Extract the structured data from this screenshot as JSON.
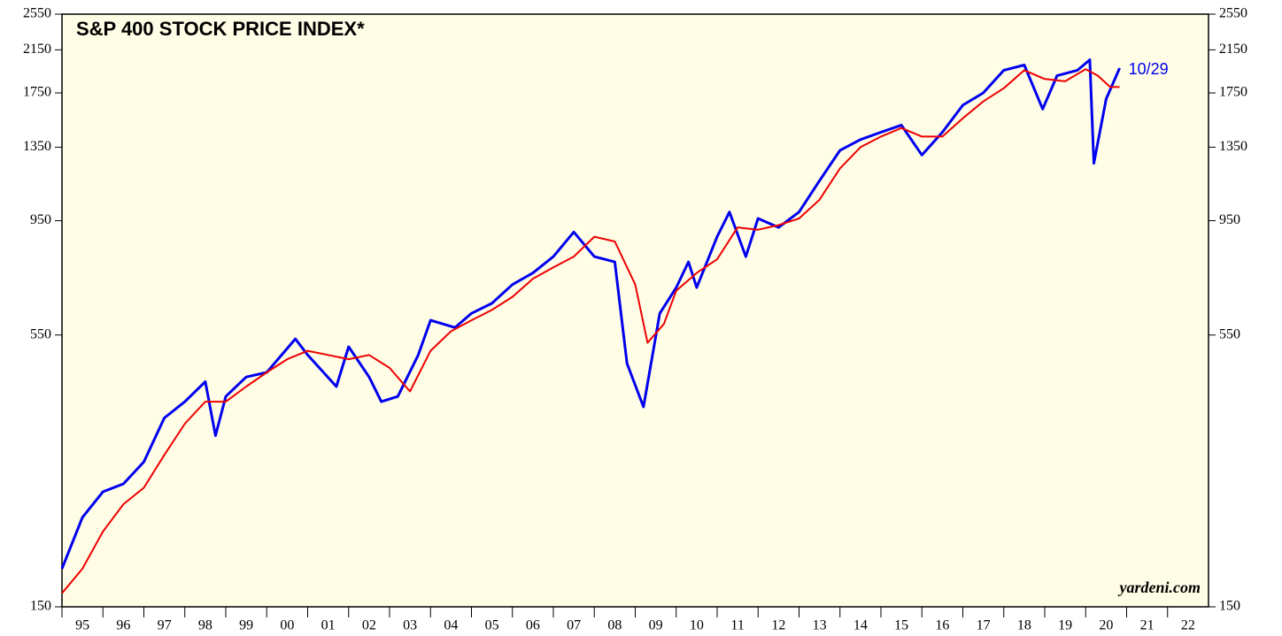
{
  "chart_data": {
    "type": "line",
    "title": "S&P 400 STOCK PRICE INDEX*",
    "source": "yardeni.com",
    "annotation": "10/29",
    "log_scale": true,
    "xlim": [
      1995,
      2023
    ],
    "xticks": [
      {
        "value": 1995,
        "label": "95"
      },
      {
        "value": 1996,
        "label": "96"
      },
      {
        "value": 1997,
        "label": "97"
      },
      {
        "value": 1998,
        "label": "98"
      },
      {
        "value": 1999,
        "label": "99"
      },
      {
        "value": 2000,
        "label": "00"
      },
      {
        "value": 2001,
        "label": "01"
      },
      {
        "value": 2002,
        "label": "02"
      },
      {
        "value": 2003,
        "label": "03"
      },
      {
        "value": 2004,
        "label": "04"
      },
      {
        "value": 2005,
        "label": "05"
      },
      {
        "value": 2006,
        "label": "06"
      },
      {
        "value": 2007,
        "label": "07"
      },
      {
        "value": 2008,
        "label": "08"
      },
      {
        "value": 2009,
        "label": "09"
      },
      {
        "value": 2010,
        "label": "10"
      },
      {
        "value": 2011,
        "label": "11"
      },
      {
        "value": 2012,
        "label": "12"
      },
      {
        "value": 2013,
        "label": "13"
      },
      {
        "value": 2014,
        "label": "14"
      },
      {
        "value": 2015,
        "label": "15"
      },
      {
        "value": 2016,
        "label": "16"
      },
      {
        "value": 2017,
        "label": "17"
      },
      {
        "value": 2018,
        "label": "18"
      },
      {
        "value": 2019,
        "label": "19"
      },
      {
        "value": 2020,
        "label": "20"
      },
      {
        "value": 2021,
        "label": "21"
      },
      {
        "value": 2022,
        "label": "22"
      }
    ],
    "ylim": [
      150,
      2550
    ],
    "yticks": [
      150,
      550,
      950,
      1350,
      1750,
      2150,
      2550
    ],
    "series": [
      {
        "color": "#0000ee",
        "x": [
          1995.0,
          1995.5,
          1996.0,
          1996.5,
          1997.0,
          1997.5,
          1998.0,
          1998.5,
          1998.75,
          1999.0,
          1999.5,
          2000.0,
          2000.7,
          2001.0,
          2001.7,
          2002.0,
          2002.5,
          2002.8,
          2003.2,
          2003.7,
          2004.0,
          2004.6,
          2005.0,
          2005.5,
          2006.0,
          2006.5,
          2007.0,
          2007.5,
          2008.0,
          2008.5,
          2008.8,
          2009.2,
          2009.6,
          2010.0,
          2010.3,
          2010.5,
          2011.0,
          2011.3,
          2011.7,
          2012.0,
          2012.5,
          2013.0,
          2013.5,
          2014.0,
          2014.5,
          2015.0,
          2015.5,
          2016.0,
          2016.5,
          2017.0,
          2017.5,
          2018.0,
          2018.5,
          2018.95,
          2019.3,
          2019.8,
          2020.1,
          2020.2,
          2020.5,
          2020.83
        ],
        "values": [
          180,
          230,
          260,
          270,
          300,
          370,
          400,
          440,
          340,
          410,
          450,
          460,
          540,
          500,
          430,
          520,
          450,
          400,
          410,
          500,
          590,
          570,
          610,
          640,
          700,
          740,
          800,
          900,
          800,
          780,
          480,
          390,
          610,
          690,
          780,
          690,
          880,
          990,
          800,
          960,
          920,
          990,
          1150,
          1330,
          1400,
          1450,
          1500,
          1300,
          1450,
          1650,
          1750,
          1950,
          2000,
          1620,
          1900,
          1950,
          2050,
          1250,
          1700,
          1970
        ]
      },
      {
        "color": "#ee0000",
        "x": [
          1995.0,
          1995.5,
          1996.0,
          1996.5,
          1997.0,
          1997.5,
          1998.0,
          1998.5,
          1999.0,
          1999.5,
          2000.0,
          2000.5,
          2001.0,
          2001.5,
          2002.0,
          2002.5,
          2003.0,
          2003.5,
          2004.0,
          2004.5,
          2005.0,
          2005.5,
          2006.0,
          2006.5,
          2007.0,
          2007.5,
          2008.0,
          2008.5,
          2009.0,
          2009.3,
          2009.7,
          2010.0,
          2010.5,
          2011.0,
          2011.5,
          2012.0,
          2012.5,
          2013.0,
          2013.5,
          2014.0,
          2014.5,
          2015.0,
          2015.5,
          2016.0,
          2016.5,
          2017.0,
          2017.5,
          2018.0,
          2018.5,
          2019.0,
          2019.5,
          2020.0,
          2020.3,
          2020.6,
          2020.83
        ],
        "values": [
          160,
          180,
          215,
          245,
          265,
          310,
          360,
          400,
          400,
          430,
          460,
          490,
          510,
          500,
          490,
          500,
          470,
          420,
          510,
          560,
          590,
          620,
          660,
          720,
          760,
          800,
          880,
          860,
          700,
          530,
          580,
          680,
          740,
          790,
          920,
          910,
          930,
          960,
          1050,
          1220,
          1350,
          1420,
          1480,
          1420,
          1420,
          1550,
          1680,
          1790,
          1950,
          1870,
          1850,
          1960,
          1900,
          1800,
          1800
        ]
      }
    ]
  }
}
